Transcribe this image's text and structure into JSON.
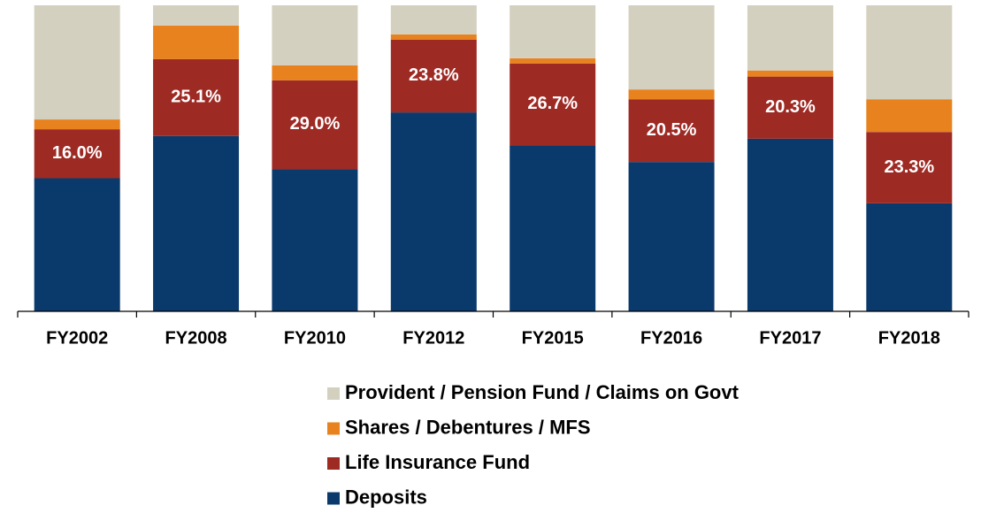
{
  "chart_data": {
    "type": "stacked_bar_100",
    "categories": [
      "FY2002",
      "FY2008",
      "FY2010",
      "FY2012",
      "FY2015",
      "FY2016",
      "FY2017",
      "FY2018"
    ],
    "ylim": [
      0,
      100
    ],
    "legend": "bottom",
    "series": [
      {
        "name": "Provident / Pension Fund / Claims on Govt",
        "color": "#d4d0bf",
        "values": [
          37.3,
          6.6,
          19.6,
          9.5,
          17.3,
          27.5,
          21.3,
          30.7
        ]
      },
      {
        "name": "Shares / Debentures / MFS",
        "color": "#e8821e",
        "values": [
          3.2,
          11.0,
          4.9,
          1.7,
          1.7,
          3.2,
          2.0,
          10.7
        ]
      },
      {
        "name": "Life Insurance Fund",
        "color": "#9e2a24",
        "values": [
          16.0,
          25.1,
          29.0,
          23.8,
          26.7,
          20.5,
          20.3,
          23.3
        ],
        "value_labels": [
          "16.0%",
          "25.1%",
          "29.0%",
          "23.8%",
          "26.7%",
          "20.5%",
          "20.3%",
          "23.3%"
        ]
      },
      {
        "name": "Deposits",
        "color": "#0a3a6b",
        "values": [
          43.5,
          57.3,
          46.5,
          65.0,
          54.3,
          48.8,
          56.4,
          35.3
        ]
      }
    ]
  }
}
